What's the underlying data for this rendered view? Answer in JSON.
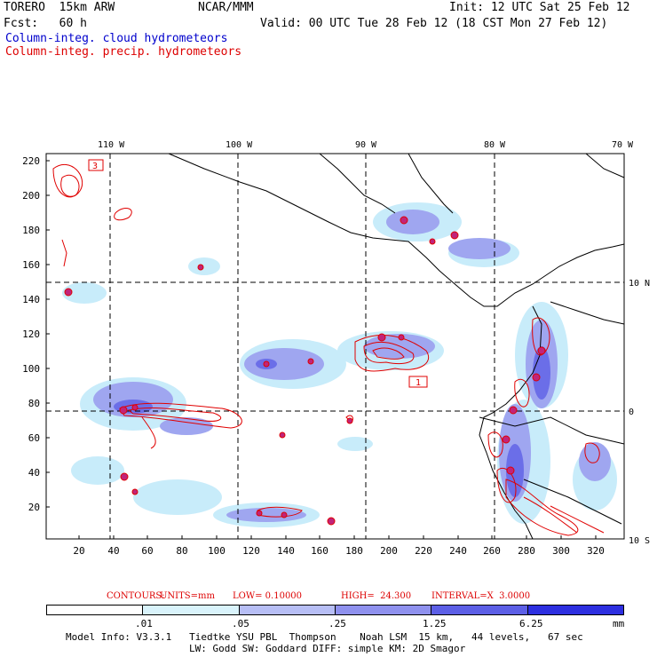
{
  "header": {
    "model": "TORERO  15km ARW",
    "center": "NCAR/MMM",
    "init": "Init: 12 UTC Sat 25 Feb 12",
    "fcst": "Fcst:   60 h",
    "valid": "Valid: 00 UTC Tue 28 Feb 12 (18 CST Mon 27 Feb 12)",
    "field1": "Column-integ. cloud hydrometeors",
    "field2": "Column-integ. precip. hydrometeors"
  },
  "map": {
    "lon_labels": [
      "110 W",
      "100 W",
      "90 W",
      "80 W",
      "70 W"
    ],
    "lat_labels": [
      "10 N",
      "0",
      "10 S"
    ],
    "y_ticks": [
      "220",
      "200",
      "180",
      "160",
      "140",
      "120",
      "100",
      "80",
      "60",
      "40",
      "20"
    ],
    "x_ticks": [
      "20",
      "40",
      "60",
      "80",
      "100",
      "120",
      "140",
      "160",
      "180",
      "200",
      "220",
      "240",
      "260",
      "280",
      "300",
      "320"
    ],
    "box_labels": [
      "3",
      "1"
    ],
    "colors": {
      "cloud_light": "#c8ecfa",
      "cloud_mid": "#9fa6f0",
      "cloud_dark": "#6b6ee8",
      "precip": "#e00000",
      "coast": "#000000"
    }
  },
  "contours": {
    "label": "CONTOURS:",
    "units": "UNITS=mm",
    "low": "LOW= 0.10000",
    "high": "HIGH=  24.300",
    "interval": "INTERVAL=X  3.0000"
  },
  "legend": {
    "values": [
      ".01",
      ".05",
      ".25",
      "1.25",
      "6.25"
    ],
    "unit": "mm",
    "colors": [
      "#ffffff",
      "#d9f3fb",
      "#b7bef5",
      "#8f91ee",
      "#5c5fe6",
      "#2d2fe0"
    ]
  },
  "footer": {
    "line1": "Model Info: V3.3.1   Tiedtke YSU PBL  Thompson    Noah LSM  15 km,   44 levels,   67 sec",
    "line2": "LW: Godd SW: Goddard DIFF: simple KM: 2D Smagor"
  }
}
